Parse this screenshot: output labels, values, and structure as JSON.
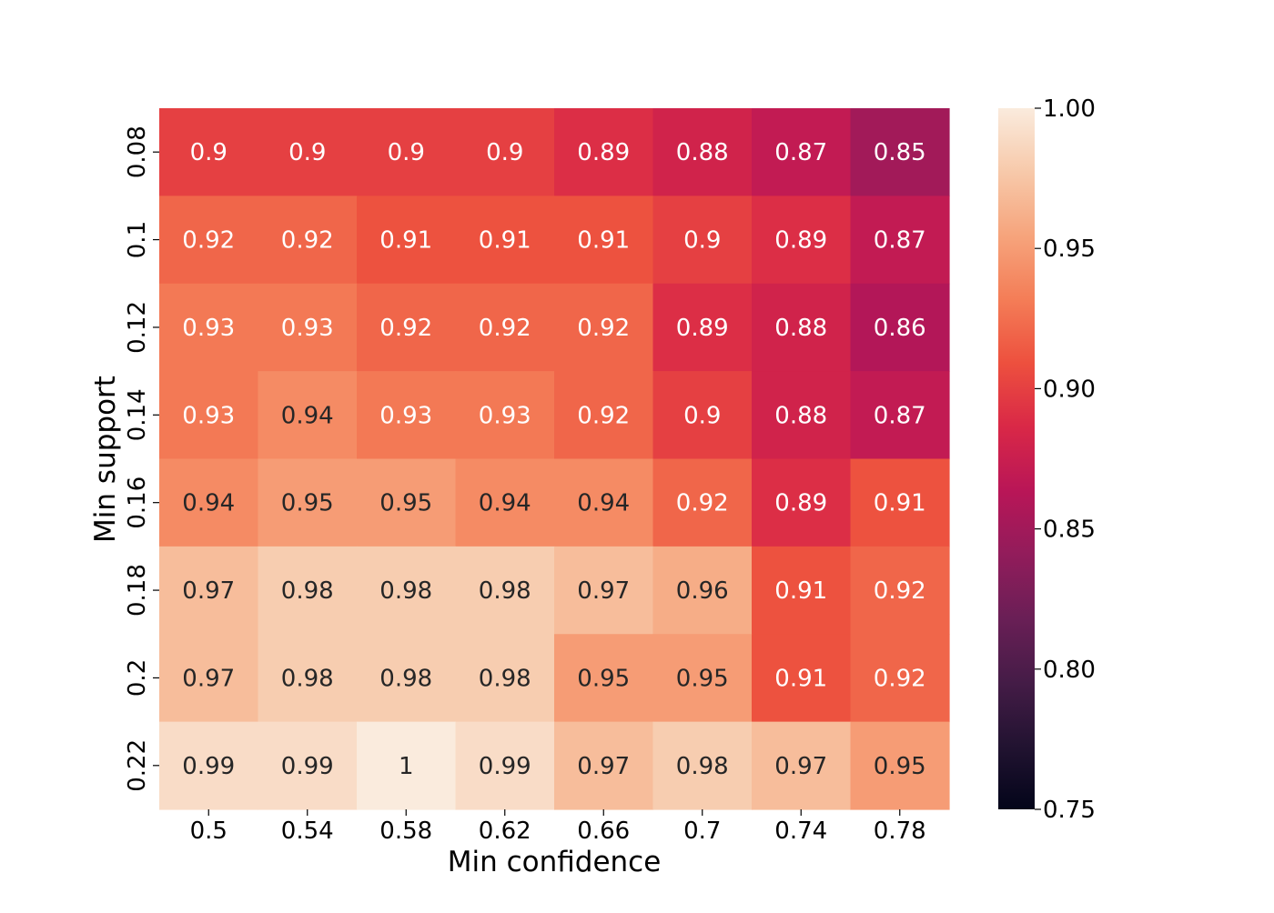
{
  "chart_data": {
    "type": "heatmap",
    "title": "",
    "xlabel": "Min confidence",
    "ylabel": "Min support",
    "x": [
      "0.5",
      "0.54",
      "0.58",
      "0.62",
      "0.66",
      "0.7",
      "0.74",
      "0.78"
    ],
    "y": [
      "0.08",
      "0.1",
      "0.12",
      "0.14",
      "0.16",
      "0.18",
      "0.2",
      "0.22"
    ],
    "values": [
      [
        0.9,
        0.9,
        0.9,
        0.9,
        0.89,
        0.88,
        0.87,
        0.85
      ],
      [
        0.92,
        0.92,
        0.91,
        0.91,
        0.91,
        0.9,
        0.89,
        0.87
      ],
      [
        0.93,
        0.93,
        0.92,
        0.92,
        0.92,
        0.89,
        0.88,
        0.86
      ],
      [
        0.93,
        0.94,
        0.93,
        0.93,
        0.92,
        0.9,
        0.88,
        0.87
      ],
      [
        0.94,
        0.95,
        0.95,
        0.94,
        0.94,
        0.92,
        0.89,
        0.91
      ],
      [
        0.97,
        0.98,
        0.98,
        0.98,
        0.97,
        0.96,
        0.91,
        0.92
      ],
      [
        0.97,
        0.98,
        0.98,
        0.98,
        0.95,
        0.95,
        0.91,
        0.92
      ],
      [
        0.99,
        0.99,
        1.0,
        0.99,
        0.97,
        0.98,
        0.97,
        0.95
      ]
    ],
    "labels": [
      [
        "0.9",
        "0.9",
        "0.9",
        "0.9",
        "0.89",
        "0.88",
        "0.87",
        "0.85"
      ],
      [
        "0.92",
        "0.92",
        "0.91",
        "0.91",
        "0.91",
        "0.9",
        "0.89",
        "0.87"
      ],
      [
        "0.93",
        "0.93",
        "0.92",
        "0.92",
        "0.92",
        "0.89",
        "0.88",
        "0.86"
      ],
      [
        "0.93",
        "0.94",
        "0.93",
        "0.93",
        "0.92",
        "0.9",
        "0.88",
        "0.87"
      ],
      [
        "0.94",
        "0.95",
        "0.95",
        "0.94",
        "0.94",
        "0.92",
        "0.89",
        "0.91"
      ],
      [
        "0.97",
        "0.98",
        "0.98",
        "0.98",
        "0.97",
        "0.96",
        "0.91",
        "0.92"
      ],
      [
        "0.97",
        "0.98",
        "0.98",
        "0.98",
        "0.95",
        "0.95",
        "0.91",
        "0.92"
      ],
      [
        "0.99",
        "0.99",
        "1",
        "0.99",
        "0.97",
        "0.98",
        "0.97",
        "0.95"
      ]
    ],
    "colorbar": {
      "vmin": 0.75,
      "vmax": 1.0,
      "ticks": [
        "0.75",
        "0.80",
        "0.85",
        "0.90",
        "0.95",
        "1.00"
      ]
    },
    "colormap_stops": [
      "#03051a",
      "#221331",
      "#451c47",
      "#6a1f56",
      "#921c5b",
      "#b91657",
      "#d92847",
      "#ed503e",
      "#f47d57",
      "#f6a47c",
      "#f7c9aa",
      "#faebdd"
    ],
    "grid": false,
    "legend": "colorbar-right"
  }
}
